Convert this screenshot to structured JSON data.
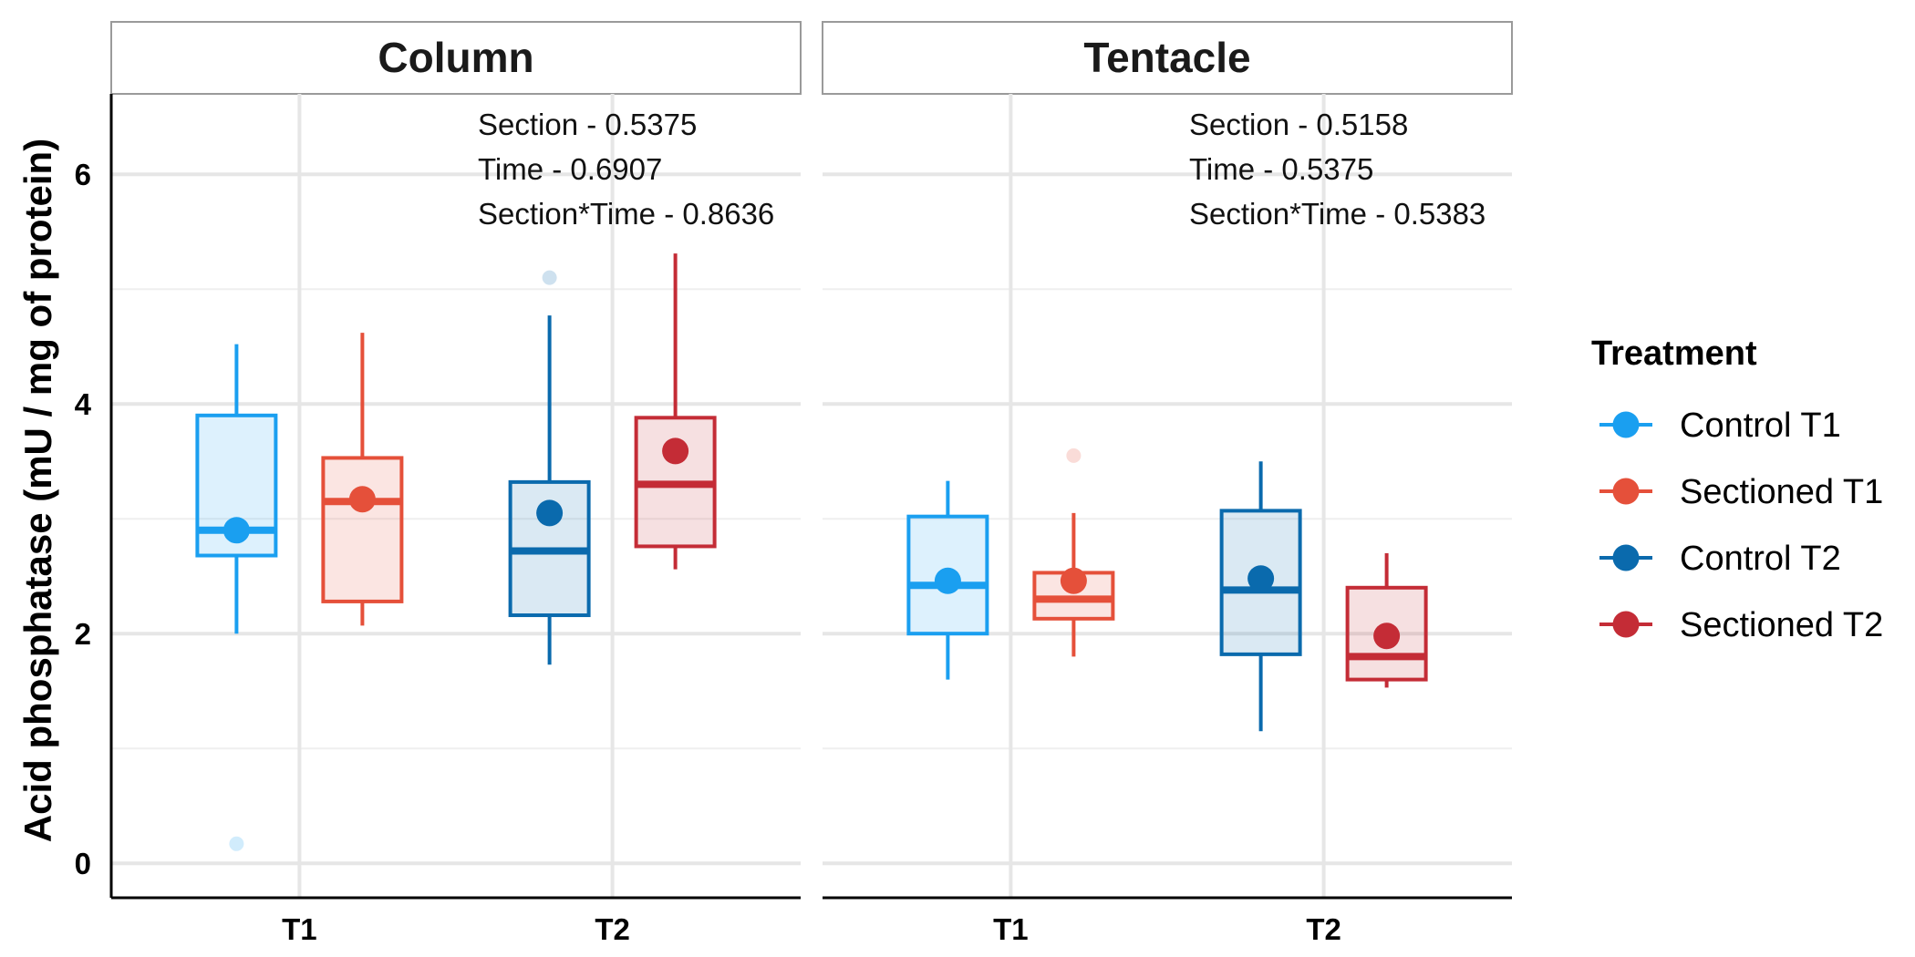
{
  "chart_data": {
    "type": "box",
    "ylabel": "Acid phosphatase (mU / mg  of protein)",
    "xlabel": "",
    "ylim": [
      -0.3,
      6.7
    ],
    "y_ticks": [
      0,
      2,
      4,
      6
    ],
    "x_categories": [
      "T1",
      "T2"
    ],
    "grid": true,
    "legend": {
      "title": "Treatment",
      "position": "right",
      "items": [
        {
          "label": "Control T1",
          "color": "#1a9ff0"
        },
        {
          "label": "Sectioned T1",
          "color": "#e5503a"
        },
        {
          "label": "Control T2",
          "color": "#0a6aad"
        },
        {
          "label": "Sectioned T2",
          "color": "#c42c36"
        }
      ]
    },
    "panels": [
      {
        "title": "Column",
        "annotations": [
          "Section - 0.5375",
          "Time - 0.6907",
          "Section*Time - 0.8636"
        ],
        "boxes": [
          {
            "group": "Control T1",
            "x": "T1",
            "offset": -1,
            "min": 2.0,
            "q1": 2.68,
            "median": 2.9,
            "q3": 3.9,
            "max": 4.52,
            "mean": 2.9,
            "outliers": [
              0.17
            ]
          },
          {
            "group": "Sectioned T1",
            "x": "T1",
            "offset": 1,
            "min": 2.07,
            "q1": 2.28,
            "median": 3.15,
            "q3": 3.53,
            "max": 4.62,
            "mean": 3.17,
            "outliers": []
          },
          {
            "group": "Control T2",
            "x": "T2",
            "offset": -1,
            "min": 1.73,
            "q1": 2.16,
            "median": 2.72,
            "q3": 3.32,
            "max": 4.77,
            "mean": 3.05,
            "outliers": [
              5.1
            ]
          },
          {
            "group": "Sectioned T2",
            "x": "T2",
            "offset": 1,
            "min": 2.56,
            "q1": 2.76,
            "median": 3.3,
            "q3": 3.88,
            "max": 5.31,
            "mean": 3.59,
            "outliers": []
          }
        ]
      },
      {
        "title": "Tentacle",
        "annotations": [
          "Section - 0.5158",
          "Time - 0.5375",
          "Section*Time - 0.5383"
        ],
        "boxes": [
          {
            "group": "Control T1",
            "x": "T1",
            "offset": -1,
            "min": 1.6,
            "q1": 2.0,
            "median": 2.42,
            "q3": 3.02,
            "max": 3.33,
            "mean": 2.46,
            "outliers": []
          },
          {
            "group": "Sectioned T1",
            "x": "T1",
            "offset": 1,
            "min": 1.8,
            "q1": 2.13,
            "median": 2.3,
            "q3": 2.53,
            "max": 3.05,
            "mean": 2.46,
            "outliers": [
              3.55
            ]
          },
          {
            "group": "Control T2",
            "x": "T2",
            "offset": -1,
            "min": 1.15,
            "q1": 1.82,
            "median": 2.38,
            "q3": 3.07,
            "max": 3.5,
            "mean": 2.48,
            "outliers": []
          },
          {
            "group": "Sectioned T2",
            "x": "T2",
            "offset": 1,
            "min": 1.53,
            "q1": 1.6,
            "median": 1.8,
            "q3": 2.4,
            "max": 2.7,
            "mean": 1.98,
            "outliers": []
          }
        ]
      }
    ]
  }
}
